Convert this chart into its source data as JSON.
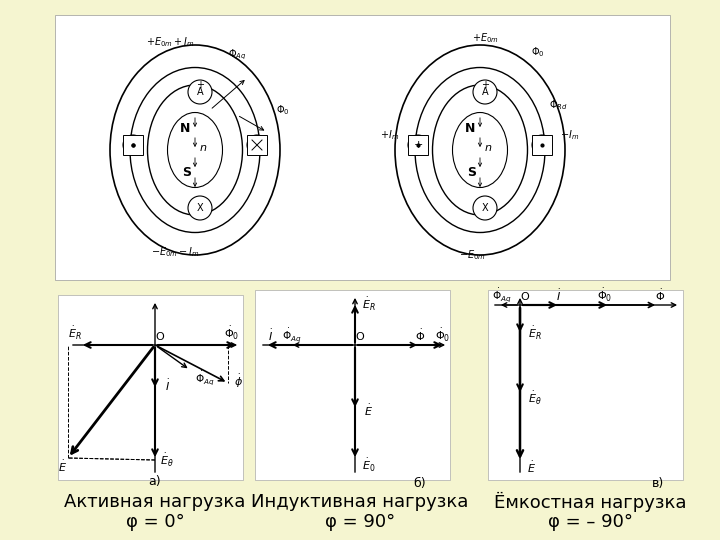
{
  "background_color": "#f5f5d0",
  "image_bg": "#ffffff",
  "title_fontsize": 13,
  "label_fontsize": 11,
  "subtitle_fontsize": 13,
  "labels": {
    "active_title": "Активная нагрузка",
    "active_sub": "φ = 0°",
    "inductive_title": "Индуктивная нагрузка",
    "inductive_sub": "φ = 90°",
    "capacitive_title": "Ёмкостная нагрузка",
    "capacitive_sub": "φ = – 90°"
  }
}
